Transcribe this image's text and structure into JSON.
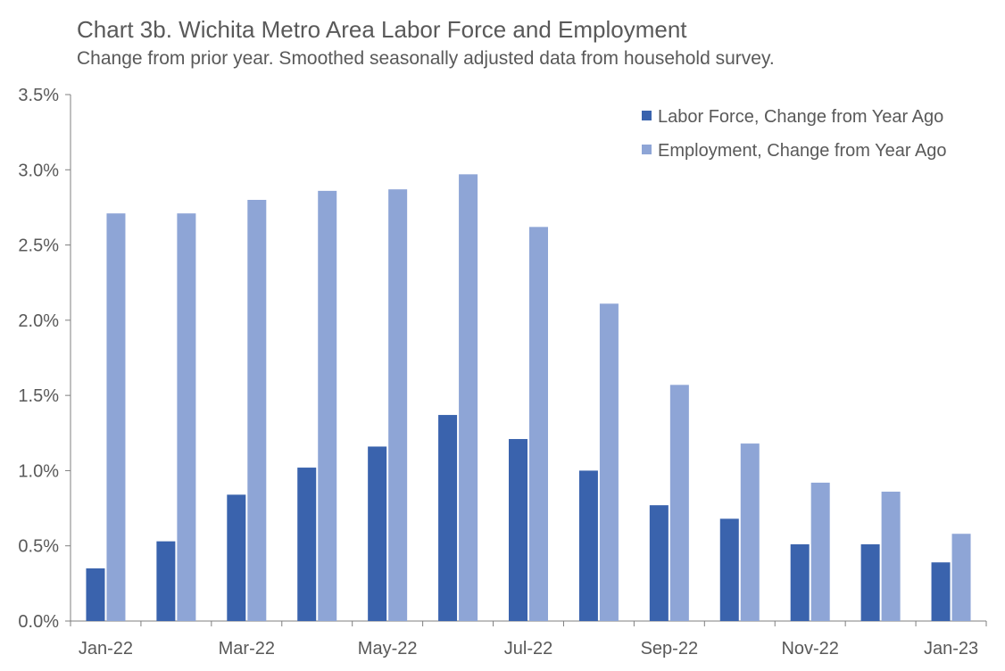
{
  "chart_data": {
    "type": "bar",
    "title": "Chart 3b. Wichita Metro Area Labor Force and Employment",
    "subtitle": "Change from prior year. Smoothed seasonally adjusted data from household survey.",
    "categories": [
      "Jan-22",
      "Feb-22",
      "Mar-22",
      "Apr-22",
      "May-22",
      "Jun-22",
      "Jul-22",
      "Aug-22",
      "Sep-22",
      "Oct-22",
      "Nov-22",
      "Dec-22",
      "Jan-23"
    ],
    "x_tick_labels": [
      "Jan-22",
      "",
      "Mar-22",
      "",
      "May-22",
      "",
      "Jul-22",
      "",
      "Sep-22",
      "",
      "Nov-22",
      "",
      "Jan-23"
    ],
    "series": [
      {
        "name": "Labor Force, Change from Year Ago",
        "color": "#3a63ad",
        "values": [
          0.35,
          0.53,
          0.84,
          1.02,
          1.16,
          1.37,
          1.21,
          1.0,
          0.77,
          0.68,
          0.51,
          0.51,
          0.39
        ]
      },
      {
        "name": "Employment, Change from Year Ago",
        "color": "#8ea5d6",
        "values": [
          2.71,
          2.71,
          2.8,
          2.86,
          2.87,
          2.97,
          2.62,
          2.11,
          1.57,
          1.18,
          0.92,
          0.86,
          0.58
        ]
      }
    ],
    "ylim": [
      0,
      3.5
    ],
    "y_ticks": [
      "0.0%",
      "0.5%",
      "1.0%",
      "1.5%",
      "2.0%",
      "2.5%",
      "3.0%",
      "3.5%"
    ],
    "xlabel": "",
    "ylabel": "",
    "grid": false,
    "legend": "top-right"
  }
}
